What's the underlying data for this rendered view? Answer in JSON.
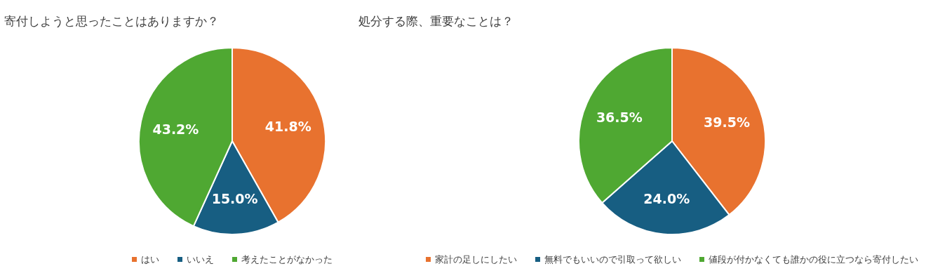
{
  "chart_data": [
    {
      "type": "pie",
      "title": "寄付しようと思ったことはありますか？",
      "categories": [
        "はい",
        "いいえ",
        "考えたことがなかった"
      ],
      "values": [
        41.8,
        15.0,
        43.2
      ],
      "value_labels": [
        "41.8%",
        "15.0%",
        "43.2%"
      ],
      "colors": [
        "#e8722f",
        "#175e82",
        "#4fa832"
      ],
      "legend": "bottom"
    },
    {
      "type": "pie",
      "title": "処分する際、重要なことは？",
      "categories": [
        "家計の足しにしたい",
        "無料でもいいので引取って欲しい",
        "値段が付かなくても誰かの役に立つなら寄付したい"
      ],
      "values": [
        39.5,
        24.0,
        36.5
      ],
      "value_labels": [
        "39.5%",
        "24.0%",
        "36.5%"
      ],
      "colors": [
        "#e8722f",
        "#175e82",
        "#4fa832"
      ],
      "legend": "bottom"
    }
  ]
}
